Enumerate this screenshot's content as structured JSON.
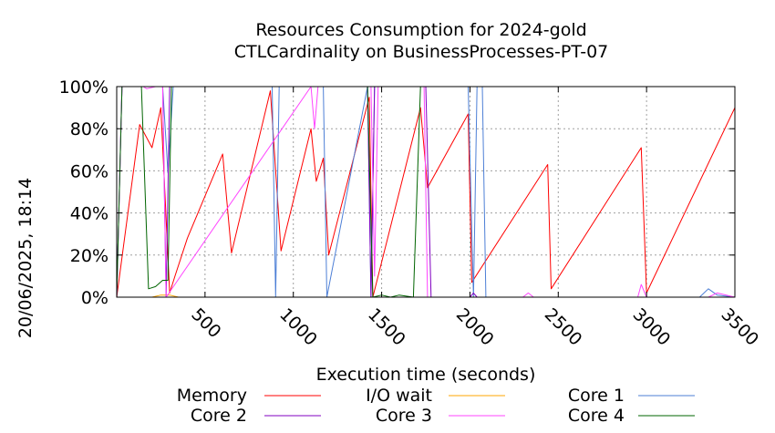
{
  "chart_data": {
    "type": "line",
    "title": "Resources Consumption for 2024-gold",
    "subtitle": "CTLCardinality on BusinessProcesses-PT-07",
    "xlabel": "Execution time (seconds)",
    "ylabel": "",
    "side_label": "20/06/2025, 18:14",
    "xlim": [
      0,
      3500
    ],
    "ylim": [
      0,
      100
    ],
    "x_ticks": [
      500,
      1000,
      1500,
      2000,
      2500,
      3000,
      3500
    ],
    "y_ticks": [
      0,
      20,
      40,
      60,
      80,
      100
    ],
    "y_tick_labels": [
      "0%",
      "20%",
      "40%",
      "60%",
      "80%",
      "100%"
    ],
    "grid": true,
    "legend_position": "bottom",
    "series": [
      {
        "name": "Memory",
        "color": "#ff0000",
        "x": [
          0,
          130,
          200,
          250,
          300,
          330,
          400,
          600,
          650,
          870,
          930,
          1100,
          1130,
          1170,
          1200,
          1430,
          1450,
          1720,
          1760,
          1990,
          2010,
          2440,
          2460,
          2970,
          3000,
          3500
        ],
        "y": [
          0,
          82,
          71,
          90,
          2,
          10,
          28,
          68,
          21,
          98,
          22,
          80,
          55,
          66,
          20,
          95,
          0,
          90,
          52,
          87,
          7,
          63,
          4,
          71,
          2,
          90
        ]
      },
      {
        "name": "I/O wait",
        "color": "#ffa500",
        "x": [
          0,
          200,
          250,
          300,
          350,
          400,
          3500
        ],
        "y": [
          0,
          0,
          1,
          1,
          0,
          0,
          0
        ]
      },
      {
        "name": "Core 1",
        "color": "#4d7fd6",
        "x": [
          0,
          30,
          100,
          260,
          290,
          320,
          340,
          880,
          900,
          920,
          1120,
          1170,
          1190,
          1420,
          1440,
          1460,
          1990,
          2020,
          2040,
          2070,
          2090,
          2110,
          3300,
          3350,
          3400,
          3500
        ],
        "y": [
          0,
          100,
          100,
          100,
          59,
          100,
          100,
          100,
          0,
          100,
          100,
          100,
          0,
          100,
          0,
          100,
          100,
          0,
          100,
          100,
          0,
          0,
          0,
          4,
          1,
          0
        ]
      },
      {
        "name": "Core 2",
        "color": "#8000c0",
        "x": [
          0,
          30,
          100,
          260,
          280,
          300,
          320,
          1420,
          1440,
          1460,
          1750,
          1780,
          2000,
          2020,
          2040,
          3500
        ],
        "y": [
          0,
          100,
          100,
          100,
          0,
          100,
          100,
          100,
          0,
          100,
          100,
          0,
          0,
          2,
          0,
          0
        ]
      },
      {
        "name": "Core 3",
        "color": "#ff44ff",
        "x": [
          0,
          30,
          150,
          170,
          220,
          260,
          280,
          1100,
          1120,
          1140,
          1440,
          1460,
          1480,
          1740,
          1760,
          2300,
          2330,
          2360,
          2950,
          2970,
          3000,
          3350,
          3400,
          3500
        ],
        "y": [
          0,
          100,
          100,
          99,
          100,
          100,
          0,
          100,
          80,
          100,
          100,
          10,
          100,
          100,
          0,
          0,
          2,
          0,
          0,
          6,
          0,
          0,
          2,
          0
        ]
      },
      {
        "name": "Core 4",
        "color": "#006400",
        "x": [
          0,
          30,
          140,
          180,
          220,
          260,
          290,
          310,
          1420,
          1450,
          1500,
          1550,
          1600,
          1680,
          1720,
          1750,
          3500
        ],
        "y": [
          0,
          100,
          100,
          4,
          5,
          8,
          8,
          100,
          100,
          0,
          1,
          0,
          1,
          0,
          100,
          100,
          100
        ]
      }
    ]
  }
}
